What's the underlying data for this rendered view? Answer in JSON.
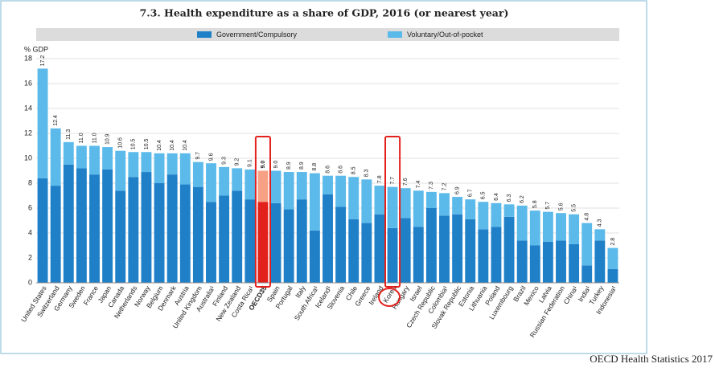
{
  "chart_data": {
    "type": "stacked_bar",
    "title": "7.3. Health expenditure as a share of GDP, 2016 (or nearest year)",
    "ylabel": "% GDP",
    "source": "OECD Health Statistics 2017",
    "categories": [
      "United States",
      "Switzerland",
      "Germany",
      "Sweden",
      "France",
      "Japan",
      "Canada",
      "Netherlands",
      "Norway",
      "Belgium",
      "Denmark",
      "Austria",
      "United Kingdom",
      "Australia¹",
      "Finland",
      "New Zealand",
      "Costa Rica¹",
      "OECD35",
      "Spain",
      "Portugal",
      "Italy",
      "South Africa¹",
      "Iceland¹",
      "Slovenia",
      "Chile",
      "Greece",
      "Ireland",
      "Korea",
      "Hungary",
      "Israel",
      "Czech Republic",
      "Colombia¹",
      "Slovak Republic",
      "Estonia",
      "Lithuania",
      "Poland",
      "Luxembourg",
      "Brazil",
      "Mexico",
      "Latvia",
      "Russian Federation",
      "China¹",
      "India¹",
      "Turkey",
      "Indonesia¹"
    ],
    "series": [
      {
        "name": "Government/Compulsory",
        "color": "#1f80c8",
        "highlight_color": "#e3211c",
        "values": [
          8.4,
          7.8,
          9.5,
          9.2,
          8.7,
          9.1,
          7.4,
          8.5,
          8.9,
          8.0,
          8.7,
          7.9,
          7.7,
          6.5,
          7.0,
          7.4,
          6.7,
          6.5,
          6.4,
          5.9,
          6.7,
          4.2,
          7.1,
          6.1,
          5.1,
          4.8,
          5.5,
          4.4,
          5.2,
          4.5,
          6.0,
          5.4,
          5.5,
          5.1,
          4.3,
          4.5,
          5.3,
          3.4,
          3.0,
          3.3,
          3.4,
          3.1,
          1.4,
          3.4,
          1.1
        ]
      },
      {
        "name": "Voluntary/Out-of-pocket",
        "color": "#5cbaea",
        "highlight_color": "#f6a184",
        "values": [
          8.8,
          4.6,
          1.8,
          1.8,
          2.3,
          1.8,
          3.2,
          2.0,
          1.6,
          2.4,
          1.7,
          2.5,
          2.0,
          3.1,
          2.3,
          1.8,
          2.4,
          2.5,
          2.6,
          3.0,
          2.2,
          4.6,
          1.5,
          2.5,
          3.4,
          3.5,
          2.3,
          3.3,
          2.4,
          2.9,
          1.3,
          1.8,
          1.4,
          1.6,
          2.2,
          1.9,
          1.0,
          2.8,
          2.8,
          2.4,
          2.2,
          2.4,
          3.4,
          0.9,
          1.7
        ]
      }
    ],
    "totals": [
      "17.2",
      "12.4",
      "11.3",
      "11.0",
      "11.0",
      "10.9",
      "10.6",
      "10.5",
      "10.5",
      "10.4",
      "10.4",
      "10.4",
      "9.7",
      "9.6",
      "9.3",
      "9.2",
      "9.1",
      "9.0",
      "9.0",
      "8.9",
      "8.9",
      "8.8",
      "8.6",
      "8.6",
      "8.5",
      "8.3",
      "7.8",
      "7.7",
      "7.6",
      "7.4",
      "7.3",
      "7.2",
      "6.9",
      "6.7",
      "6.5",
      "6.4",
      "6.3",
      "6.2",
      "5.8",
      "5.7",
      "5.6",
      "5.5",
      "4.8",
      "4.3",
      "2.8"
    ],
    "highlight_category": "OECD35",
    "ylim": [
      0,
      18
    ],
    "yticks": [
      0,
      2,
      4,
      6,
      8,
      10,
      12,
      14,
      16,
      18
    ],
    "grid": true
  }
}
